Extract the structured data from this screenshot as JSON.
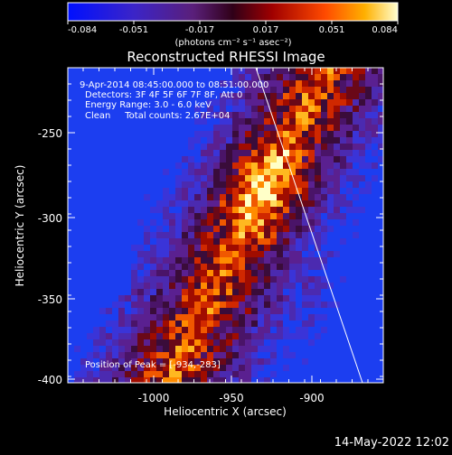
{
  "colorbar": {
    "tick_labels": [
      "-0.084",
      "-0.051",
      "-0.017",
      "0.017",
      "0.051",
      "0.084"
    ],
    "units": "(photons cm⁻² s⁻¹ asec⁻²)"
  },
  "plot": {
    "title": "Reconstructed RHESSI Image",
    "info_lines": [
      "9-Apr-2014 08:45:00.000 to 08:51:00.000",
      "Detectors: 3F 4F 5F 6F 7F 8F, Att 0",
      "Energy Range: 3.0 - 6.0 keV",
      "Clean     Total counts: 2.67E+04"
    ],
    "peak_text": "Position of Peak = [-934,-283]",
    "xlabel": "Heliocentric X (arcsec)",
    "ylabel": "Heliocentric Y (arcsec)",
    "x_ticks": [
      "-1000",
      "-950",
      "-900"
    ],
    "y_ticks": [
      "-250",
      "-300",
      "-350",
      "-400"
    ]
  },
  "footer": {
    "timestamp": "14-May-2022 12:02"
  }
}
